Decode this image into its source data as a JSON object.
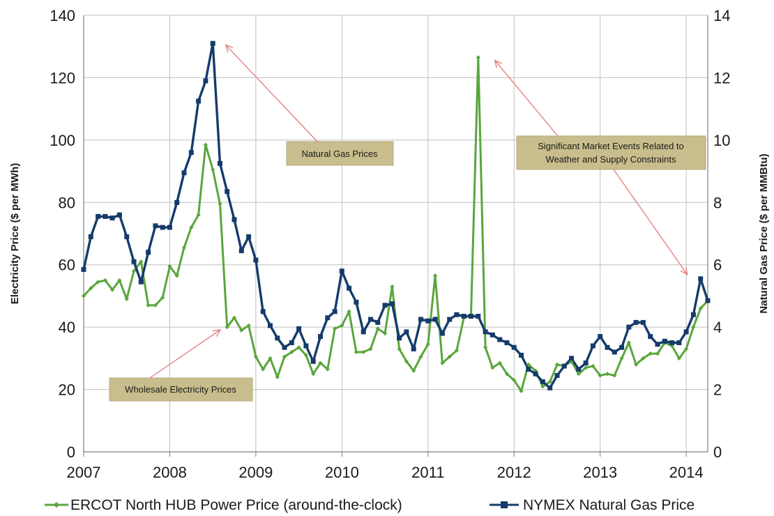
{
  "chart_data": {
    "type": "line",
    "ylabel": "Electricity Price ($ per MWh)",
    "y2label": "Natural Gas Price ($ per MMBtu)",
    "xlim": [
      2007,
      2014.25
    ],
    "ylim": [
      0,
      140
    ],
    "y2lim": [
      0,
      14
    ],
    "x_ticks": [
      "2007",
      "2008",
      "2009",
      "2010",
      "2011",
      "2012",
      "2013",
      "2014"
    ],
    "y_ticks": [
      "0",
      "20",
      "40",
      "60",
      "80",
      "100",
      "120",
      "140"
    ],
    "y2_ticks": [
      "0",
      "2",
      "4",
      "6",
      "8",
      "10",
      "12",
      "14"
    ],
    "grid": true,
    "legend_position": "bottom",
    "series": [
      {
        "name": "ERCOT North HUB Power Price (around-the-clock)",
        "axis": "left",
        "color": "#5aa63c",
        "marker": "diamond",
        "x_start": 2007.0,
        "x_step": 0.0833333,
        "values": [
          50,
          52.5,
          54.5,
          55,
          52,
          55,
          49,
          58,
          61,
          47,
          47,
          49.5,
          59.5,
          56.5,
          65.5,
          72,
          76,
          98.5,
          90.5,
          79.5,
          40,
          43,
          39,
          40.5,
          30.5,
          26.5,
          30,
          24,
          30.5,
          32,
          33.5,
          31,
          25,
          28.5,
          26.5,
          39.5,
          40.5,
          45,
          32,
          32,
          33,
          39.5,
          38,
          53,
          33,
          29,
          26,
          30.5,
          34.5,
          56.5,
          28.5,
          30.5,
          32.5,
          43,
          44,
          126.5,
          33.5,
          27,
          28.5,
          25,
          23,
          19.5,
          28,
          26,
          21,
          22.5,
          28,
          27.5,
          29,
          25,
          27,
          27.5,
          24.5,
          25,
          24.5,
          30,
          35,
          28,
          30,
          31.5,
          31.5,
          35,
          34,
          30,
          33,
          40,
          46,
          48.5
        ]
      },
      {
        "name": "NYMEX Natural Gas Price",
        "axis": "right",
        "color": "#153b6b",
        "marker": "square",
        "x_start": 2007.0,
        "x_step": 0.0833333,
        "values": [
          5.85,
          6.9,
          7.55,
          7.55,
          7.5,
          7.6,
          6.9,
          6.1,
          5.45,
          6.4,
          7.25,
          7.2,
          7.2,
          8,
          8.95,
          9.6,
          11.25,
          11.9,
          13.1,
          9.25,
          8.35,
          7.45,
          6.45,
          6.9,
          6.15,
          4.5,
          4.05,
          3.65,
          3.35,
          3.5,
          3.95,
          3.4,
          2.9,
          3.7,
          4.3,
          4.5,
          5.8,
          5.25,
          4.8,
          3.85,
          4.25,
          4.15,
          4.7,
          4.75,
          3.65,
          3.85,
          3.3,
          4.25,
          4.2,
          4.25,
          3.8,
          4.25,
          4.4,
          4.35,
          4.35,
          4.35,
          3.85,
          3.75,
          3.6,
          3.5,
          3.35,
          3.1,
          2.65,
          2.5,
          2.25,
          2.05,
          2.45,
          2.75,
          3,
          2.65,
          2.85,
          3.4,
          3.7,
          3.35,
          3.2,
          3.35,
          4.0,
          4.15,
          4.15,
          3.7,
          3.45,
          3.55,
          3.5,
          3.5,
          3.85,
          4.4,
          5.55,
          4.85
        ]
      }
    ],
    "annotations": [
      {
        "id": "natural-gas",
        "lines": [
          "Natural Gas Prices"
        ],
        "target_x": 2008.65,
        "target_y": 130.5,
        "target_axis": "left"
      },
      {
        "id": "market-events",
        "lines": [
          "Significant Market Events Related to",
          "Weather and Supply Constraints"
        ],
        "targets": [
          {
            "x": 2011.72,
            "y": 126
          },
          {
            "x": 2014.06,
            "y": 5.6,
            "axis": "right"
          }
        ]
      },
      {
        "id": "wholesale",
        "lines": [
          "Wholesale Electricity Prices"
        ],
        "target_x": 2008.62,
        "target_y": 40.5,
        "target_axis": "left"
      }
    ]
  },
  "colors": {
    "annotation_box": "#c8bd8c",
    "annotation_arrow": "#e07a7a",
    "gridline": "#bfbfbf"
  }
}
